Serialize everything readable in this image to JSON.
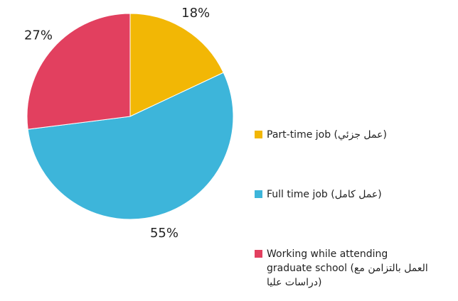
{
  "chart_data": {
    "type": "pie",
    "categories": [
      "Part-time job (عمل جزئي)",
      "Full time job (عمل كامل)",
      "Working while attending graduate school (العمل بالتزامن مع دراسات عليا)"
    ],
    "values": [
      18,
      55,
      27
    ],
    "value_labels": [
      "18%",
      "55%",
      "27%"
    ],
    "colors": [
      "#f2b705",
      "#3db5da",
      "#e2405f"
    ],
    "legend": "right"
  }
}
